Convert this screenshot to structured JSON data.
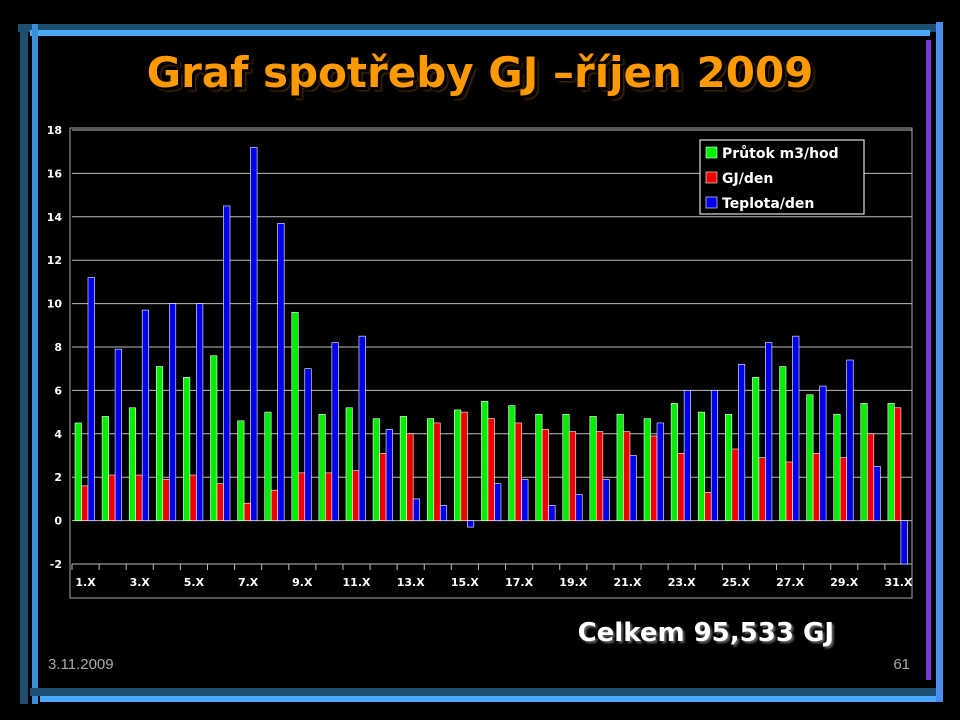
{
  "slide": {
    "title": "Graf spotřeby GJ –říjen 2009",
    "total": "Celkem 95,533 GJ",
    "date": "3.11.2009",
    "page": "61"
  },
  "chart_data": {
    "type": "bar",
    "title": "",
    "xlabel": "",
    "ylabel": "",
    "ylim": [
      -2,
      18
    ],
    "y_ticks": [
      -2,
      0,
      2,
      4,
      6,
      8,
      10,
      12,
      14,
      16,
      18
    ],
    "grid": true,
    "legend_position": "top-right",
    "categories": [
      "1.X",
      "2.X",
      "3.X",
      "4.X",
      "5.X",
      "6.X",
      "7.X",
      "8.X",
      "9.X",
      "10.X",
      "11.X",
      "12.X",
      "13.X",
      "14.X",
      "15.X",
      "16.X",
      "17.X",
      "18.X",
      "19.X",
      "20.X",
      "21.X",
      "22.X",
      "23.X",
      "24.X",
      "25.X",
      "26.X",
      "27.X",
      "28.X",
      "29.X",
      "30.X",
      "31.X"
    ],
    "x_tick_labels": [
      "1.X",
      "3.X",
      "5.X",
      "7.X",
      "9.X",
      "11.X",
      "13.X",
      "15.X",
      "17.X",
      "19.X",
      "21.X",
      "23.X",
      "25.X",
      "27.X",
      "29.X",
      "31.X"
    ],
    "series": [
      {
        "name": "Průtok m3/hod",
        "color": "#00ee00",
        "values": [
          4.5,
          4.8,
          5.2,
          7.1,
          6.6,
          7.6,
          4.6,
          5.0,
          9.6,
          4.9,
          5.2,
          4.7,
          4.8,
          4.7,
          5.1,
          5.5,
          5.3,
          4.9,
          4.9,
          4.8,
          4.9,
          4.7,
          5.4,
          5.0,
          4.9,
          6.6,
          7.1,
          5.8,
          4.9,
          5.4,
          5.4
        ]
      },
      {
        "name": "GJ/den",
        "color": "#ee0000",
        "values": [
          1.6,
          2.1,
          2.1,
          1.9,
          2.1,
          1.7,
          0.8,
          1.4,
          2.2,
          2.2,
          2.3,
          3.1,
          4.0,
          4.5,
          5.0,
          4.7,
          4.5,
          4.2,
          4.1,
          4.1,
          4.1,
          3.9,
          3.1,
          1.3,
          3.3,
          2.9,
          2.7,
          3.1,
          2.9,
          4.0,
          5.2
        ]
      },
      {
        "name": "Teplota/den",
        "color": "#0000ee",
        "values": [
          11.2,
          7.9,
          9.7,
          10.0,
          10.0,
          14.5,
          17.2,
          13.7,
          7.0,
          8.2,
          8.5,
          4.2,
          1.0,
          0.7,
          -0.3,
          1.7,
          1.9,
          0.7,
          1.2,
          1.9,
          3.0,
          4.5,
          6.0,
          6.0,
          7.2,
          8.2,
          8.5,
          6.2,
          7.4,
          2.5,
          -2.0
        ]
      }
    ]
  }
}
